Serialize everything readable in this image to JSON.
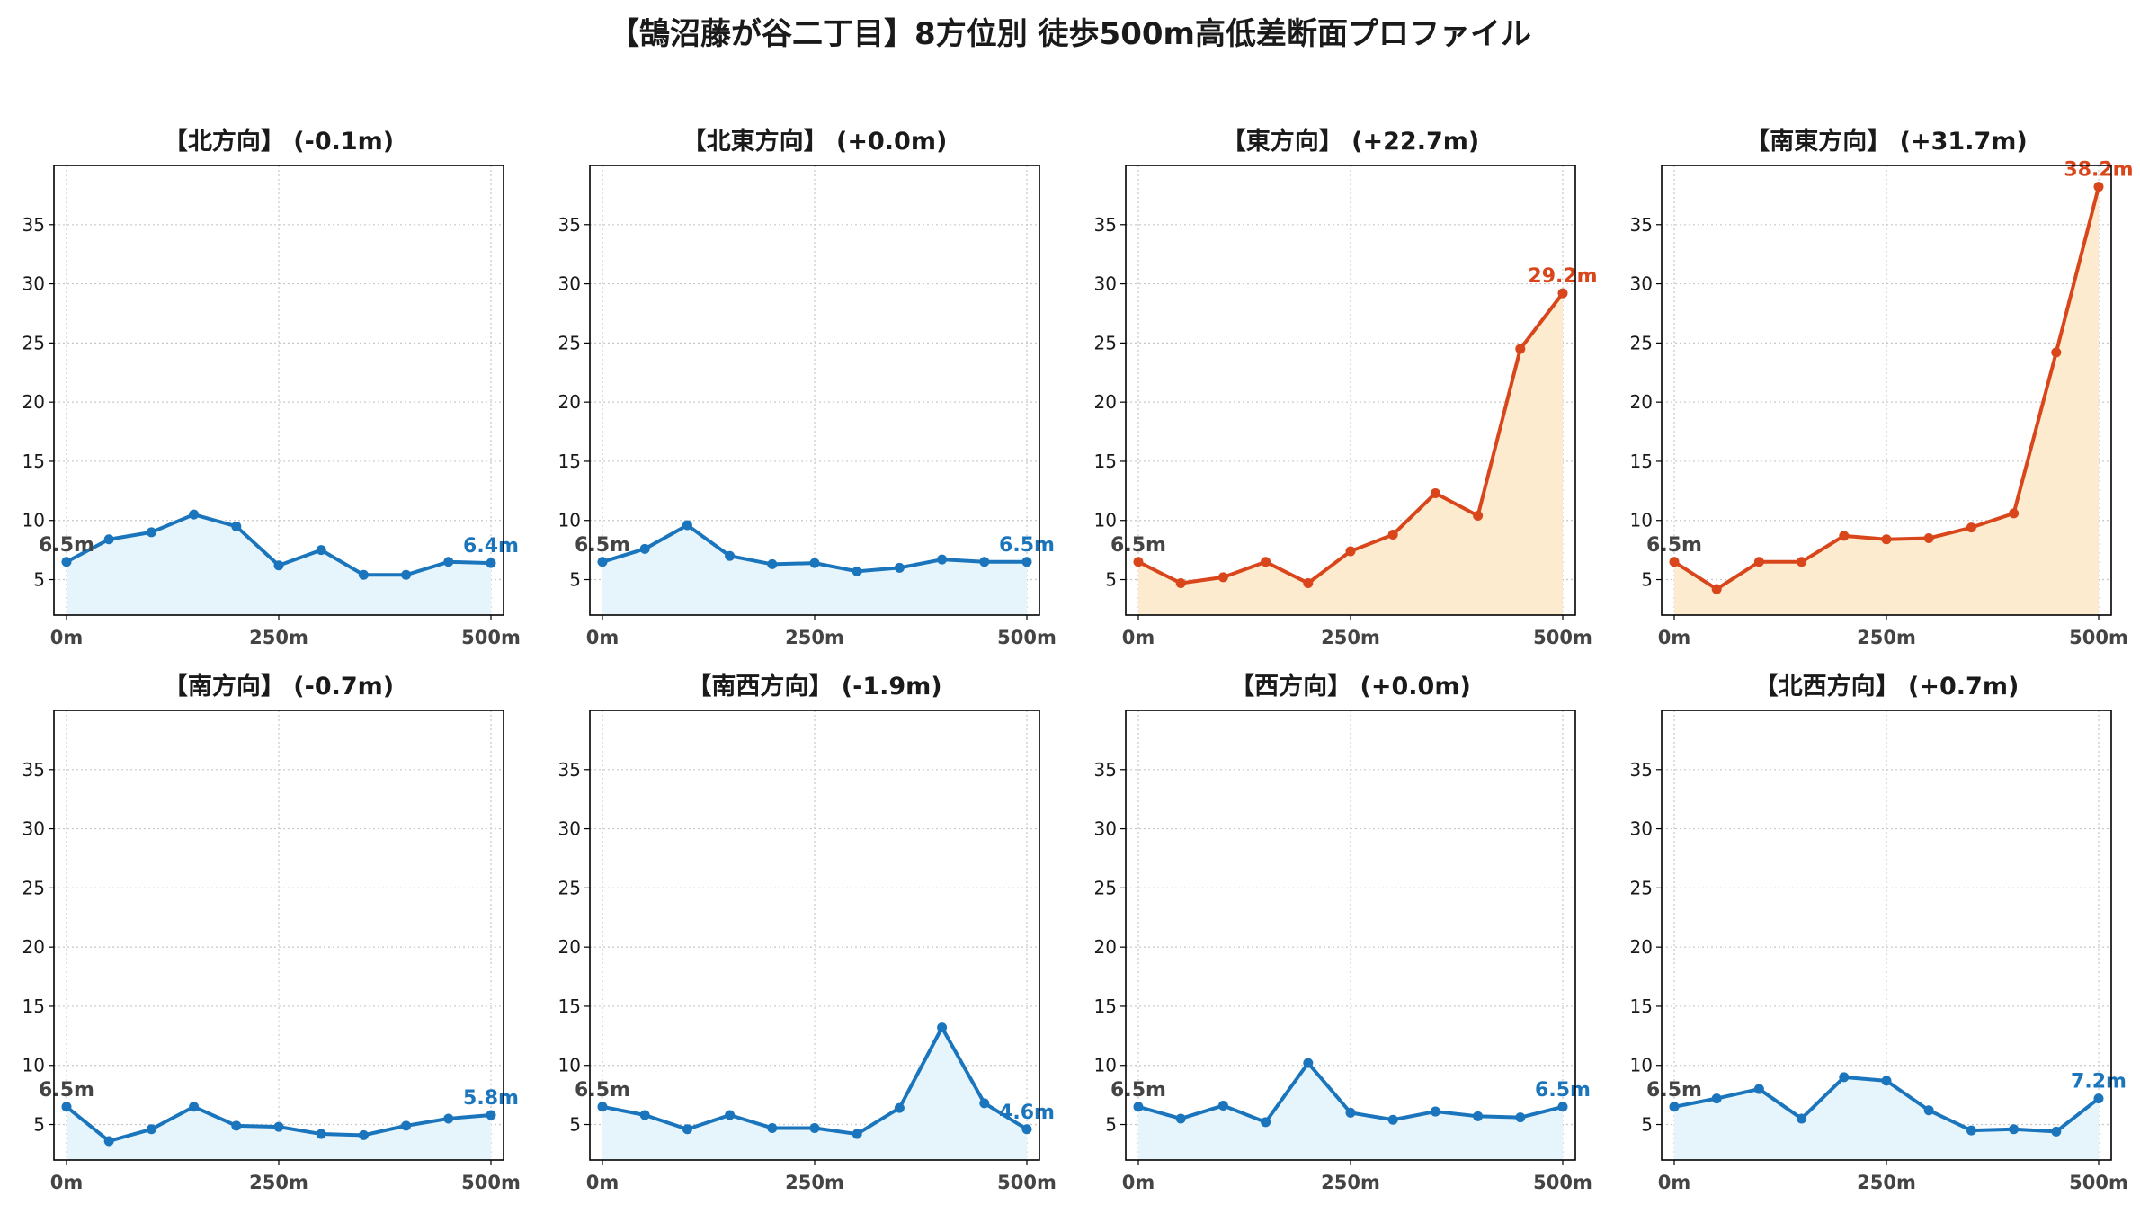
{
  "title": "【鵠沼藤が谷二丁目】8方位別 徒歩500m高低差断面プロファイル",
  "colors": {
    "flat_line": "#1a75bc",
    "flat_fill": "#e6f4fb",
    "uphill_line": "#d9461b",
    "uphill_fill": "#fdebd0",
    "start_label": "#444444",
    "grid": "#c8c8c8"
  },
  "x_tick_labels": [
    "0m",
    "250m",
    "500m"
  ],
  "y_tick_labels": [
    "5",
    "10",
    "15",
    "20",
    "25",
    "30",
    "35"
  ],
  "chart_data": [
    {
      "type": "area",
      "title": "【北方向】 (-0.1m)",
      "style": "flat",
      "x": [
        0,
        50,
        100,
        150,
        200,
        250,
        300,
        350,
        400,
        450,
        500
      ],
      "y": [
        6.5,
        8.4,
        9.0,
        10.5,
        9.5,
        6.2,
        7.5,
        5.4,
        5.4,
        6.5,
        6.4
      ],
      "start_label": "6.5m",
      "end_label": "6.4m",
      "xlim": [
        0,
        500
      ],
      "ylim": [
        2,
        40
      ],
      "xticks": [
        0,
        250,
        500
      ],
      "yticks": [
        5,
        10,
        15,
        20,
        25,
        30,
        35
      ],
      "grid": true
    },
    {
      "type": "area",
      "title": "【北東方向】 (+0.0m)",
      "style": "flat",
      "x": [
        0,
        50,
        100,
        150,
        200,
        250,
        300,
        350,
        400,
        450,
        500
      ],
      "y": [
        6.5,
        7.6,
        9.6,
        7.0,
        6.3,
        6.4,
        5.7,
        6.0,
        6.7,
        6.5,
        6.5
      ],
      "start_label": "6.5m",
      "end_label": "6.5m",
      "xlim": [
        0,
        500
      ],
      "ylim": [
        2,
        40
      ],
      "xticks": [
        0,
        250,
        500
      ],
      "yticks": [
        5,
        10,
        15,
        20,
        25,
        30,
        35
      ],
      "grid": true
    },
    {
      "type": "area",
      "title": "【東方向】 (+22.7m)",
      "style": "uphill",
      "x": [
        0,
        50,
        100,
        150,
        200,
        250,
        300,
        350,
        400,
        450,
        500
      ],
      "y": [
        6.5,
        4.7,
        5.2,
        6.5,
        4.7,
        7.4,
        8.8,
        12.3,
        10.4,
        24.5,
        29.2
      ],
      "start_label": "6.5m",
      "end_label": "29.2m",
      "xlim": [
        0,
        500
      ],
      "ylim": [
        2,
        40
      ],
      "xticks": [
        0,
        250,
        500
      ],
      "yticks": [
        5,
        10,
        15,
        20,
        25,
        30,
        35
      ],
      "grid": true
    },
    {
      "type": "area",
      "title": "【南東方向】 (+31.7m)",
      "style": "uphill",
      "x": [
        0,
        50,
        100,
        150,
        200,
        250,
        300,
        350,
        400,
        450,
        500
      ],
      "y": [
        6.5,
        4.2,
        6.5,
        6.5,
        8.7,
        8.4,
        8.5,
        9.4,
        10.6,
        24.2,
        38.2
      ],
      "start_label": "6.5m",
      "end_label": "38.2m",
      "xlim": [
        0,
        500
      ],
      "ylim": [
        2,
        40
      ],
      "xticks": [
        0,
        250,
        500
      ],
      "yticks": [
        5,
        10,
        15,
        20,
        25,
        30,
        35
      ],
      "grid": true
    },
    {
      "type": "area",
      "title": "【南方向】 (-0.7m)",
      "style": "flat",
      "x": [
        0,
        50,
        100,
        150,
        200,
        250,
        300,
        350,
        400,
        450,
        500
      ],
      "y": [
        6.5,
        3.6,
        4.6,
        6.5,
        4.9,
        4.8,
        4.2,
        4.1,
        4.9,
        5.5,
        5.8
      ],
      "start_label": "6.5m",
      "end_label": "5.8m",
      "xlim": [
        0,
        500
      ],
      "ylim": [
        2,
        40
      ],
      "xticks": [
        0,
        250,
        500
      ],
      "yticks": [
        5,
        10,
        15,
        20,
        25,
        30,
        35
      ],
      "grid": true
    },
    {
      "type": "area",
      "title": "【南西方向】 (-1.9m)",
      "style": "flat",
      "x": [
        0,
        50,
        100,
        150,
        200,
        250,
        300,
        350,
        400,
        450,
        500
      ],
      "y": [
        6.5,
        5.8,
        4.6,
        5.8,
        4.7,
        4.7,
        4.2,
        6.4,
        13.2,
        6.8,
        4.6
      ],
      "start_label": "6.5m",
      "end_label": "4.6m",
      "xlim": [
        0,
        500
      ],
      "ylim": [
        2,
        40
      ],
      "xticks": [
        0,
        250,
        500
      ],
      "yticks": [
        5,
        10,
        15,
        20,
        25,
        30,
        35
      ],
      "grid": true
    },
    {
      "type": "area",
      "title": "【西方向】 (+0.0m)",
      "style": "flat",
      "x": [
        0,
        50,
        100,
        150,
        200,
        250,
        300,
        350,
        400,
        450,
        500
      ],
      "y": [
        6.5,
        5.5,
        6.6,
        5.2,
        10.2,
        6.0,
        5.4,
        6.1,
        5.7,
        5.6,
        6.5
      ],
      "start_label": "6.5m",
      "end_label": "6.5m",
      "xlim": [
        0,
        500
      ],
      "ylim": [
        2,
        40
      ],
      "xticks": [
        0,
        250,
        500
      ],
      "yticks": [
        5,
        10,
        15,
        20,
        25,
        30,
        35
      ],
      "grid": true
    },
    {
      "type": "area",
      "title": "【北西方向】 (+0.7m)",
      "style": "flat",
      "x": [
        0,
        50,
        100,
        150,
        200,
        250,
        300,
        350,
        400,
        450,
        500
      ],
      "y": [
        6.5,
        7.2,
        8.0,
        5.5,
        9.0,
        8.7,
        6.2,
        4.5,
        4.6,
        4.4,
        7.2
      ],
      "start_label": "6.5m",
      "end_label": "7.2m",
      "xlim": [
        0,
        500
      ],
      "ylim": [
        2,
        40
      ],
      "xticks": [
        0,
        250,
        500
      ],
      "yticks": [
        5,
        10,
        15,
        20,
        25,
        30,
        35
      ],
      "grid": true
    }
  ]
}
